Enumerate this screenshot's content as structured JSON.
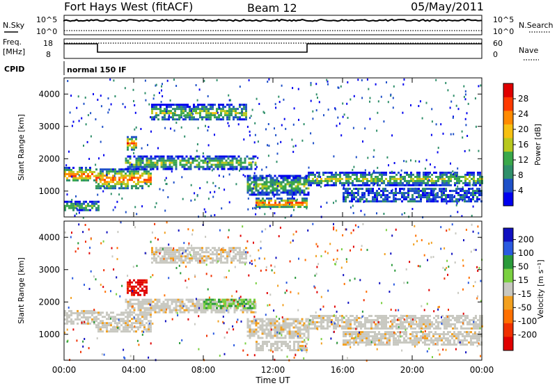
{
  "header": {
    "title": "Fort Hays West (fitACF)",
    "beam": "Beam 12",
    "date": "05/May/2011"
  },
  "panels": {
    "nsky": {
      "left_label": "N.Sky",
      "left_ticks": [
        "10^5",
        "10^0"
      ],
      "right_ticks": [
        "10^5",
        "10^0"
      ],
      "right_label": "N.Search"
    },
    "freq": {
      "left_label_1": "Freq.",
      "left_label_2": "[MHz]",
      "left_ticks": [
        "18",
        "8"
      ],
      "right_ticks": [
        "60",
        "0"
      ],
      "right_label": "Nave"
    },
    "cpid": {
      "label": "CPID",
      "mode": "normal 150 IF"
    }
  },
  "chart_data": [
    {
      "type": "heatmap",
      "title": "",
      "ylabel": "Slant Range [km]",
      "xlabel": "",
      "ylim": [
        200,
        4500
      ],
      "xlim": [
        0,
        24
      ],
      "yticks": [
        "1000",
        "2000",
        "3000",
        "4000"
      ],
      "colorbar": {
        "label": "Power [dB]",
        "ticks": [
          "4",
          "8",
          "12",
          "16",
          "20",
          "24",
          "28"
        ],
        "colors": [
          "#0000ee",
          "#1e50c8",
          "#2f8f6a",
          "#3aa84a",
          "#b8c81e",
          "#f6c012",
          "#ff8a00",
          "#ff3a00",
          "#e00000"
        ]
      },
      "echo_bands": [
        {
          "t0": 0.0,
          "t1": 1.8,
          "r0": 1300,
          "r1": 1750,
          "level": "high"
        },
        {
          "t0": 1.8,
          "t1": 5.0,
          "r0": 1100,
          "r1": 1700,
          "level": "high"
        },
        {
          "t0": 3.5,
          "t1": 11.0,
          "r0": 1700,
          "r1": 2100,
          "level": "mid"
        },
        {
          "t0": 5.0,
          "t1": 10.5,
          "r0": 3200,
          "r1": 3700,
          "level": "mid"
        },
        {
          "t0": 10.5,
          "t1": 14.0,
          "r0": 900,
          "r1": 1500,
          "level": "mid"
        },
        {
          "t0": 11.0,
          "t1": 14.0,
          "r0": 500,
          "r1": 800,
          "level": "high"
        },
        {
          "t0": 14.0,
          "t1": 24.0,
          "r0": 1200,
          "r1": 1600,
          "level": "mid"
        },
        {
          "t0": 16.0,
          "t1": 24.0,
          "r0": 700,
          "r1": 1100,
          "level": "low"
        },
        {
          "t0": 0.0,
          "t1": 2.0,
          "r0": 400,
          "r1": 700,
          "level": "mid"
        },
        {
          "t0": 3.6,
          "t1": 4.2,
          "r0": 2300,
          "r1": 2700,
          "level": "high"
        }
      ]
    },
    {
      "type": "heatmap",
      "title": "",
      "ylabel": "Slant Range [km]",
      "xlabel": "Time UT",
      "ylim": [
        200,
        4500
      ],
      "xlim": [
        0,
        24
      ],
      "yticks": [
        "1000",
        "2000",
        "3000",
        "4000"
      ],
      "xticks": [
        "00:00",
        "04:00",
        "08:00",
        "12:00",
        "16:00",
        "20:00",
        "00:00"
      ],
      "colorbar": {
        "label": "Velocity [m s⁻¹]",
        "ticks": [
          "200",
          "100",
          "50",
          "15",
          "-15",
          "-50",
          "-100",
          "-200"
        ],
        "colors": [
          "#1010c0",
          "#2a5ae0",
          "#2a9a3a",
          "#7ad040",
          "#c8c8c0",
          "#f2a020",
          "#ff7000",
          "#f03000",
          "#e00000"
        ]
      },
      "echo_bands": [
        {
          "t0": 0.0,
          "t1": 1.8,
          "r0": 1300,
          "r1": 1750,
          "level": "ground"
        },
        {
          "t0": 1.8,
          "t1": 5.0,
          "r0": 1100,
          "r1": 1700,
          "level": "ground"
        },
        {
          "t0": 3.5,
          "t1": 11.0,
          "r0": 1700,
          "r1": 2100,
          "level": "ground"
        },
        {
          "t0": 5.0,
          "t1": 10.5,
          "r0": 3200,
          "r1": 3700,
          "level": "ground"
        },
        {
          "t0": 10.5,
          "t1": 14.0,
          "r0": 900,
          "r1": 1500,
          "level": "ground"
        },
        {
          "t0": 11.0,
          "t1": 14.0,
          "r0": 500,
          "r1": 800,
          "level": "ground"
        },
        {
          "t0": 14.0,
          "t1": 24.0,
          "r0": 1200,
          "r1": 1600,
          "level": "ground"
        },
        {
          "t0": 16.0,
          "t1": 24.0,
          "r0": 700,
          "r1": 1100,
          "level": "ground"
        },
        {
          "t0": 3.6,
          "t1": 4.8,
          "r0": 2200,
          "r1": 2700,
          "level": "neg"
        },
        {
          "t0": 8.0,
          "t1": 11.0,
          "r0": 1800,
          "r1": 2100,
          "level": "pos"
        }
      ]
    }
  ]
}
